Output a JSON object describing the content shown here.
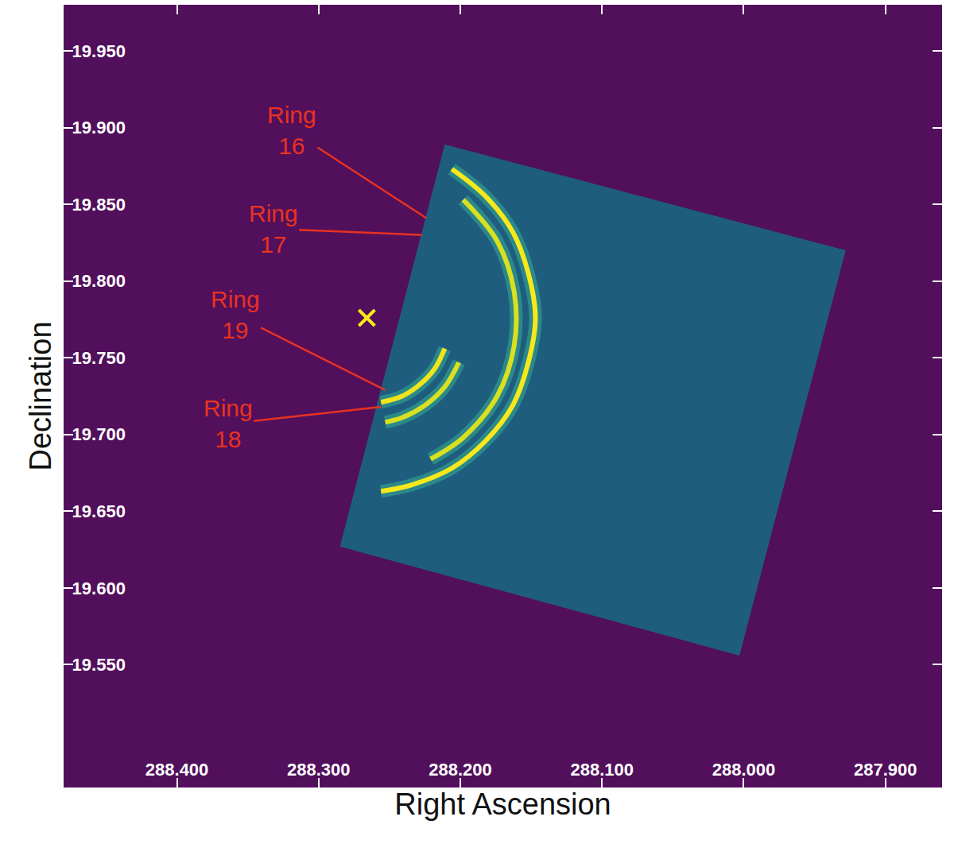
{
  "chart_data": {
    "type": "scatter",
    "xlabel": "Right Ascension",
    "ylabel": "Declination",
    "xlim": [
      288.48,
      287.86
    ],
    "ylim": [
      19.47,
      19.98
    ],
    "xticks": [
      {
        "value": 288.4,
        "label": "288.400"
      },
      {
        "value": 288.3,
        "label": "288.300"
      },
      {
        "value": 288.2,
        "label": "288.200"
      },
      {
        "value": 288.1,
        "label": "288.100"
      },
      {
        "value": 288.0,
        "label": "288.000"
      },
      {
        "value": 287.9,
        "label": "287.900"
      }
    ],
    "yticks": [
      {
        "value": 19.55,
        "label": "19.550"
      },
      {
        "value": 19.6,
        "label": "19.600"
      },
      {
        "value": 19.65,
        "label": "19.650"
      },
      {
        "value": 19.7,
        "label": "19.700"
      },
      {
        "value": 19.75,
        "label": "19.750"
      },
      {
        "value": 19.8,
        "label": "19.800"
      },
      {
        "value": 19.85,
        "label": "19.850"
      },
      {
        "value": 19.9,
        "label": "19.900"
      },
      {
        "value": 19.95,
        "label": "19.950"
      }
    ],
    "grid": false,
    "field": {
      "x": [
        288.211,
        287.928,
        288.003,
        288.285
      ],
      "y": [
        19.889,
        19.82,
        19.556,
        19.627
      ],
      "color": "#1f5d7e"
    },
    "center": {
      "x": [
        288.266
      ],
      "y": [
        19.776
      ],
      "color": "#ffe81a",
      "marker": "x"
    },
    "rings": [
      {
        "label": "Ring 16",
        "color": "#f7e81c",
        "x": [
          288.206,
          288.182,
          288.163,
          288.152,
          288.147,
          288.152,
          288.163,
          288.182,
          288.206,
          288.235,
          288.256
        ],
        "y": [
          19.873,
          19.855,
          19.832,
          19.805,
          19.776,
          19.747,
          19.719,
          19.696,
          19.678,
          19.667,
          19.663
        ],
        "label_x": 288.319,
        "label_y": 19.898,
        "point_x": 288.224,
        "point_y": 19.841
      },
      {
        "label": "Ring 17",
        "color": "#d9e021",
        "x": [
          288.198,
          288.174,
          288.162,
          288.162,
          288.174,
          288.198,
          288.221
        ],
        "y": [
          19.853,
          19.826,
          19.793,
          19.758,
          19.725,
          19.698,
          19.684
        ],
        "label_x": 288.332,
        "label_y": 19.834,
        "point_x": 288.227,
        "point_y": 19.83
      },
      {
        "label": "Ring 19",
        "color": "#f0e41c",
        "x": [
          288.211,
          288.218,
          288.228,
          288.241,
          288.256
        ],
        "y": [
          19.756,
          19.743,
          19.733,
          19.725,
          19.721
        ],
        "label_x": 288.359,
        "label_y": 19.778,
        "point_x": 288.253,
        "point_y": 19.729
      },
      {
        "label": "Ring 18",
        "color": "#d9e021",
        "x": [
          288.201,
          288.211,
          288.225,
          288.241,
          288.253
        ],
        "y": [
          19.747,
          19.731,
          19.719,
          19.711,
          19.708
        ],
        "label_x": 288.364,
        "label_y": 19.707,
        "point_x": 288.256,
        "point_y": 19.718
      }
    ]
  }
}
